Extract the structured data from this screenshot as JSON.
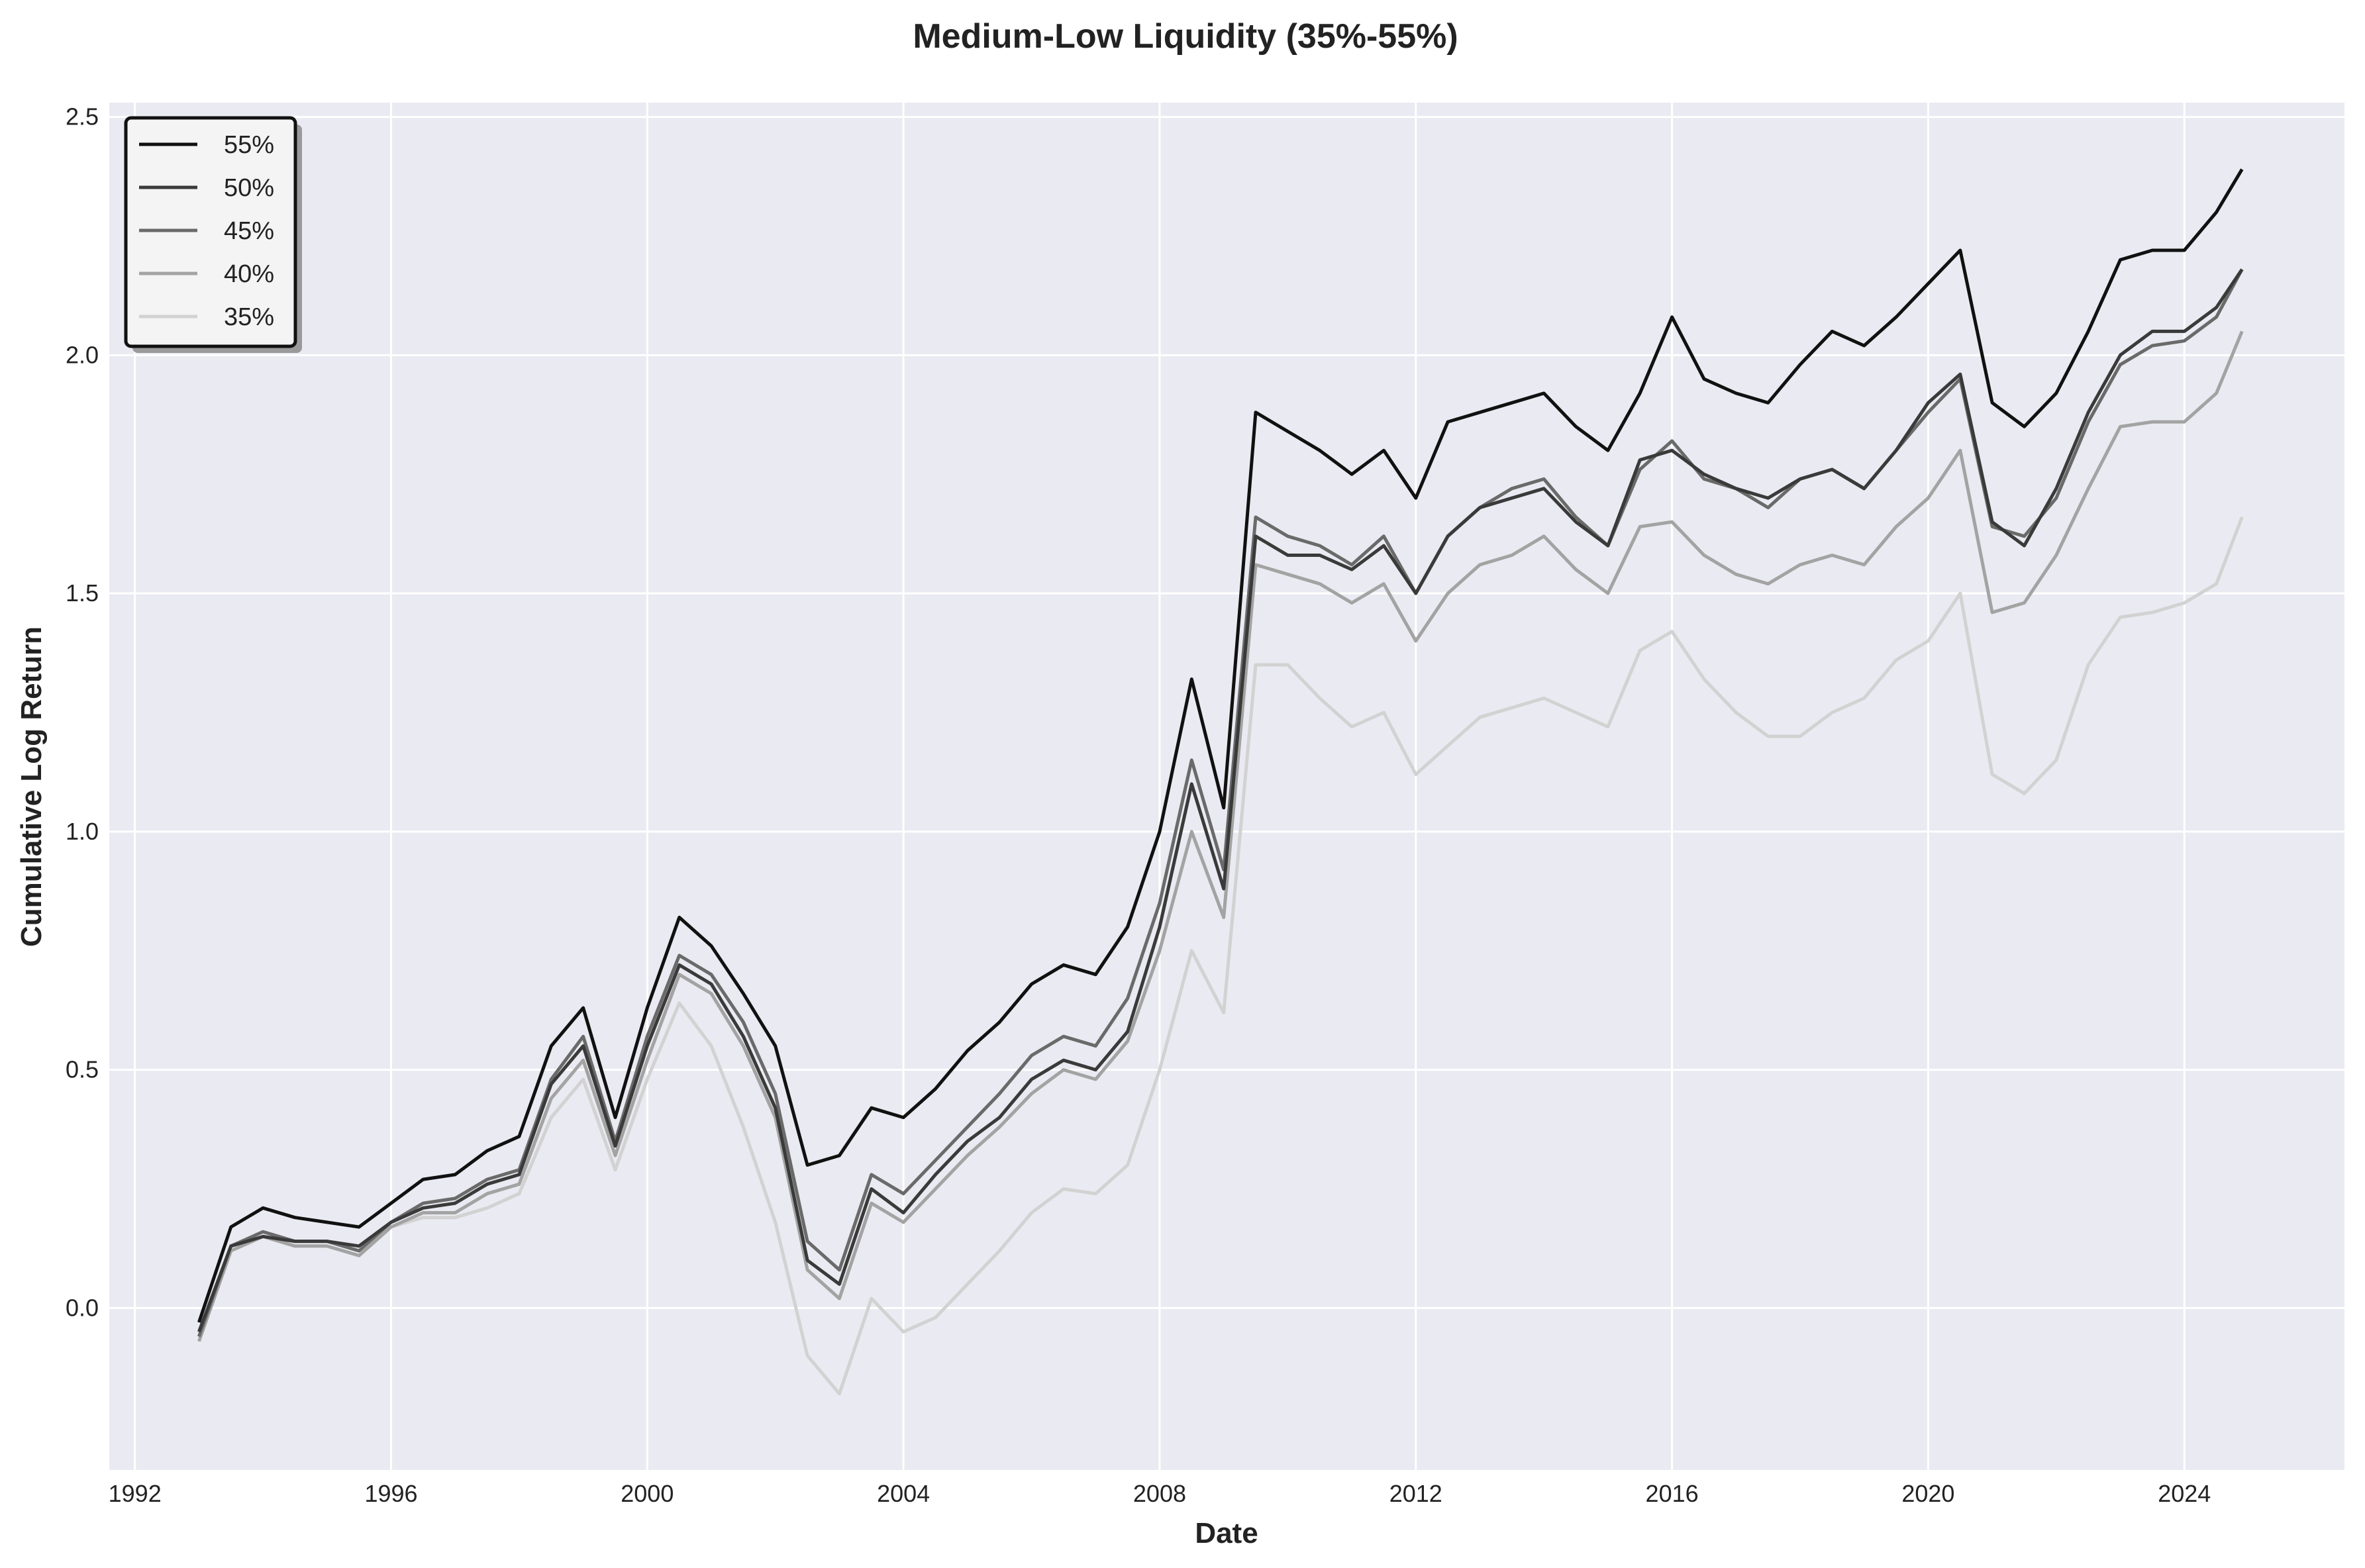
{
  "chart_data": {
    "type": "line",
    "title": "Medium-Low Liquidity (35%-55%)",
    "xlabel": "Date",
    "ylabel": "Cumulative Log Return",
    "xlim": [
      1991.6,
      2026.5
    ],
    "ylim": [
      -0.34,
      2.53
    ],
    "x_ticks": [
      1992,
      1996,
      2000,
      2004,
      2008,
      2012,
      2016,
      2020,
      2024
    ],
    "y_ticks": [
      0.0,
      0.5,
      1.0,
      1.5,
      2.0,
      2.5
    ],
    "y_tick_labels": [
      "0.0",
      "0.5",
      "1.0",
      "1.5",
      "2.0",
      "2.5"
    ],
    "grid": true,
    "legend_position": "top-left",
    "background": "#eaeaf2",
    "x": [
      1993.0,
      1993.5,
      1994.0,
      1994.5,
      1995.0,
      1995.5,
      1996.0,
      1996.5,
      1997.0,
      1997.5,
      1998.0,
      1998.5,
      1999.0,
      1999.5,
      2000.0,
      2000.5,
      2001.0,
      2001.5,
      2002.0,
      2002.5,
      2003.0,
      2003.5,
      2004.0,
      2004.5,
      2005.0,
      2005.5,
      2006.0,
      2006.5,
      2007.0,
      2007.5,
      2008.0,
      2008.5,
      2009.0,
      2009.5,
      2010.0,
      2010.5,
      2011.0,
      2011.5,
      2012.0,
      2012.5,
      2013.0,
      2013.5,
      2014.0,
      2014.5,
      2015.0,
      2015.5,
      2016.0,
      2016.5,
      2017.0,
      2017.5,
      2018.0,
      2018.5,
      2019.0,
      2019.5,
      2020.0,
      2020.5,
      2021.0,
      2021.5,
      2022.0,
      2022.5,
      2023.0,
      2023.5,
      2024.0,
      2024.5,
      2024.9
    ],
    "series": [
      {
        "name": "55%",
        "color": "#111111",
        "values": [
          -0.03,
          0.17,
          0.21,
          0.19,
          0.18,
          0.17,
          0.22,
          0.27,
          0.28,
          0.33,
          0.36,
          0.55,
          0.63,
          0.4,
          0.63,
          0.82,
          0.76,
          0.66,
          0.55,
          0.3,
          0.32,
          0.42,
          0.4,
          0.46,
          0.54,
          0.6,
          0.68,
          0.72,
          0.7,
          0.8,
          1.0,
          1.32,
          1.05,
          1.88,
          1.84,
          1.8,
          1.75,
          1.8,
          1.7,
          1.86,
          1.88,
          1.9,
          1.92,
          1.85,
          1.8,
          1.92,
          2.08,
          1.95,
          1.92,
          1.9,
          1.98,
          2.05,
          2.02,
          2.08,
          2.15,
          2.22,
          1.9,
          1.85,
          1.92,
          2.05,
          2.2,
          2.22,
          2.22,
          2.3,
          2.39
        ]
      },
      {
        "name": "50%",
        "color": "#3a3a3a",
        "values": [
          -0.05,
          0.13,
          0.15,
          0.14,
          0.14,
          0.13,
          0.18,
          0.21,
          0.22,
          0.26,
          0.28,
          0.47,
          0.55,
          0.34,
          0.55,
          0.72,
          0.68,
          0.57,
          0.42,
          0.1,
          0.05,
          0.25,
          0.2,
          0.28,
          0.35,
          0.4,
          0.48,
          0.52,
          0.5,
          0.58,
          0.8,
          1.1,
          0.88,
          1.62,
          1.58,
          1.58,
          1.55,
          1.6,
          1.5,
          1.62,
          1.68,
          1.7,
          1.72,
          1.65,
          1.6,
          1.78,
          1.8,
          1.75,
          1.72,
          1.7,
          1.74,
          1.76,
          1.72,
          1.8,
          1.9,
          1.96,
          1.65,
          1.6,
          1.72,
          1.88,
          2.0,
          2.05,
          2.05,
          2.1,
          2.18
        ]
      },
      {
        "name": "45%",
        "color": "#6a6a6a",
        "values": [
          -0.06,
          0.13,
          0.16,
          0.14,
          0.14,
          0.12,
          0.18,
          0.22,
          0.23,
          0.27,
          0.29,
          0.48,
          0.57,
          0.35,
          0.57,
          0.74,
          0.7,
          0.6,
          0.45,
          0.14,
          0.08,
          0.28,
          0.24,
          0.31,
          0.38,
          0.45,
          0.53,
          0.57,
          0.55,
          0.65,
          0.85,
          1.15,
          0.92,
          1.66,
          1.62,
          1.6,
          1.56,
          1.62,
          1.5,
          1.62,
          1.68,
          1.72,
          1.74,
          1.66,
          1.6,
          1.76,
          1.82,
          1.74,
          1.72,
          1.68,
          1.74,
          1.76,
          1.72,
          1.8,
          1.88,
          1.95,
          1.64,
          1.62,
          1.7,
          1.86,
          1.98,
          2.02,
          2.03,
          2.08,
          2.18
        ]
      },
      {
        "name": "40%",
        "color": "#a3a3a3",
        "values": [
          -0.07,
          0.12,
          0.15,
          0.13,
          0.13,
          0.11,
          0.17,
          0.2,
          0.2,
          0.24,
          0.26,
          0.44,
          0.52,
          0.32,
          0.52,
          0.7,
          0.66,
          0.55,
          0.4,
          0.08,
          0.02,
          0.22,
          0.18,
          0.25,
          0.32,
          0.38,
          0.45,
          0.5,
          0.48,
          0.56,
          0.75,
          1.0,
          0.82,
          1.56,
          1.54,
          1.52,
          1.48,
          1.52,
          1.4,
          1.5,
          1.56,
          1.58,
          1.62,
          1.55,
          1.5,
          1.64,
          1.65,
          1.58,
          1.54,
          1.52,
          1.56,
          1.58,
          1.56,
          1.64,
          1.7,
          1.8,
          1.46,
          1.48,
          1.58,
          1.72,
          1.85,
          1.86,
          1.86,
          1.92,
          2.05
        ]
      },
      {
        "name": "35%",
        "color": "#d2d2d2",
        "values": [
          -0.06,
          0.13,
          0.15,
          0.14,
          0.14,
          0.12,
          0.17,
          0.19,
          0.19,
          0.21,
          0.24,
          0.4,
          0.48,
          0.29,
          0.48,
          0.64,
          0.55,
          0.38,
          0.18,
          -0.1,
          -0.18,
          0.02,
          -0.05,
          -0.02,
          0.05,
          0.12,
          0.2,
          0.25,
          0.24,
          0.3,
          0.5,
          0.75,
          0.62,
          1.35,
          1.35,
          1.28,
          1.22,
          1.25,
          1.12,
          1.18,
          1.24,
          1.26,
          1.28,
          1.25,
          1.22,
          1.38,
          1.42,
          1.32,
          1.25,
          1.2,
          1.2,
          1.25,
          1.28,
          1.36,
          1.4,
          1.5,
          1.12,
          1.08,
          1.15,
          1.35,
          1.45,
          1.46,
          1.48,
          1.52,
          1.66
        ]
      }
    ]
  }
}
